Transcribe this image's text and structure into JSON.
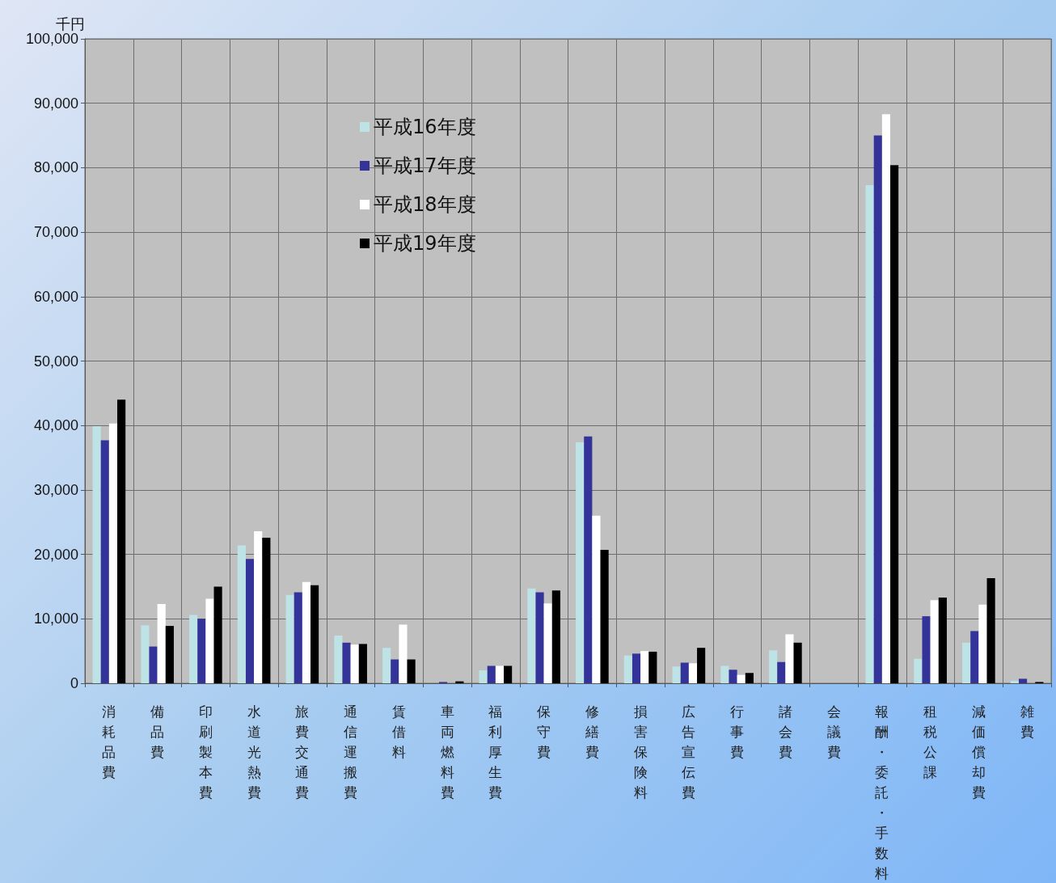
{
  "chart_data": {
    "type": "bar",
    "ylabel": "千円",
    "categories": [
      "消耗品費",
      "備品費",
      "印刷製本費",
      "水道光熱費",
      "旅費交通費",
      "通信運搬費",
      "賃借料",
      "車両燃料費",
      "福利厚生費",
      "保守費",
      "修繕費",
      "損害保険料",
      "広告宣伝費",
      "行事費",
      "諸会費",
      "会議費",
      "報酬・委託・手数料",
      "租税公課",
      "減価償却費",
      "雑費"
    ],
    "series": [
      {
        "name": "平成16年度",
        "color": "#bde3e6",
        "values": [
          39900,
          9000,
          10600,
          21400,
          13700,
          7400,
          5500,
          null,
          2000,
          14700,
          37400,
          4300,
          2600,
          2700,
          5100,
          0,
          77300,
          3800,
          6300,
          400
        ]
      },
      {
        "name": "平成17年度",
        "color": "#333399",
        "values": [
          37700,
          5700,
          10000,
          19300,
          14100,
          6300,
          3700,
          200,
          2700,
          14100,
          38300,
          4600,
          3200,
          2100,
          3300,
          0,
          85000,
          10400,
          8100,
          700
        ]
      },
      {
        "name": "平成18年度",
        "color": "#ffffff",
        "values": [
          40300,
          12300,
          13100,
          23600,
          15700,
          6000,
          9100,
          null,
          2700,
          12400,
          26000,
          5000,
          3100,
          1300,
          7600,
          0,
          88300,
          12900,
          12200,
          null
        ]
      },
      {
        "name": "平成19年度",
        "color": "#000000",
        "values": [
          44000,
          8900,
          15000,
          22600,
          15200,
          6100,
          3700,
          300,
          2700,
          14400,
          20700,
          4900,
          5500,
          1600,
          6300,
          0,
          80400,
          13300,
          16300,
          200
        ]
      }
    ],
    "ylim": [
      0,
      100000
    ],
    "yticks": [
      {
        "value": 0,
        "label": "0"
      },
      {
        "value": 10000,
        "label": "10,000"
      },
      {
        "value": 20000,
        "label": "20,000"
      },
      {
        "value": 30000,
        "label": "30,000"
      },
      {
        "value": 40000,
        "label": "40,000"
      },
      {
        "value": 50000,
        "label": "50,000"
      },
      {
        "value": 60000,
        "label": "60,000"
      },
      {
        "value": 70000,
        "label": "70,000"
      },
      {
        "value": 80000,
        "label": "80,000"
      },
      {
        "value": 90000,
        "label": "90,000"
      },
      {
        "value": 100000,
        "label": "100,000"
      }
    ],
    "grid": true,
    "legend": "top left"
  }
}
